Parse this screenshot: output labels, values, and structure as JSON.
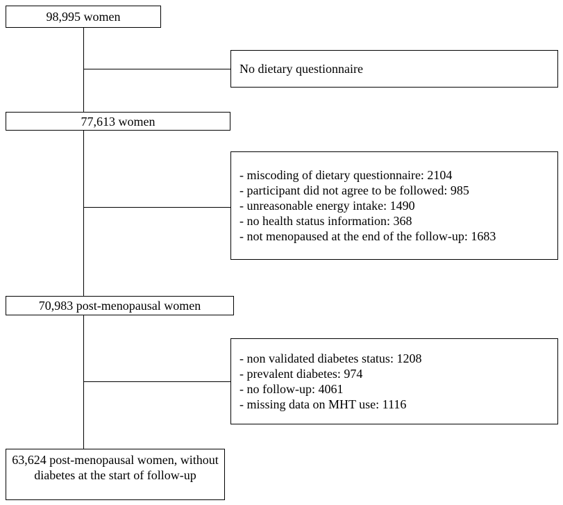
{
  "boxes": {
    "start": "98,995 women",
    "after_questionnaire": "77,613 women",
    "post_menopausal": "70,983 post-menopausal women",
    "final": "63,624 post-menopausal women, without diabetes at the start of follow-up"
  },
  "exclusions": {
    "first": "No dietary questionnaire",
    "second": [
      "- miscoding of dietary questionnaire: 2104",
      "- participant did not agree to be followed: 985",
      "- unreasonable energy intake: 1490",
      "- no health status information: 368",
      "- not menopaused at the end of the follow-up: 1683"
    ],
    "third": [
      "- non validated diabetes status: 1208",
      "- prevalent diabetes: 974",
      "- no follow-up: 4061",
      "- missing data on MHT use: 1116"
    ]
  }
}
